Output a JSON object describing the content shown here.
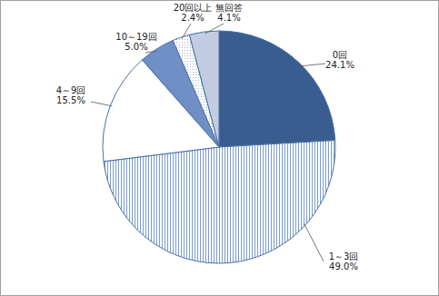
{
  "chart_data": {
    "type": "pie",
    "categories": [
      "0回",
      "1～3回",
      "4～9回",
      "10～19回",
      "20回以上",
      "無回答"
    ],
    "values": [
      24.1,
      49.0,
      15.5,
      5.0,
      2.4,
      4.1
    ],
    "value_labels": [
      "24.1%",
      "49.0%",
      "15.5%",
      "5.0%",
      "2.4%",
      "4.1%"
    ],
    "colors": [
      "#3a5d8f",
      "#7a9ccf",
      "#ffffff",
      "#6f8fc6",
      "#9db0d4",
      "#c3cde2"
    ],
    "data_labels": true
  }
}
